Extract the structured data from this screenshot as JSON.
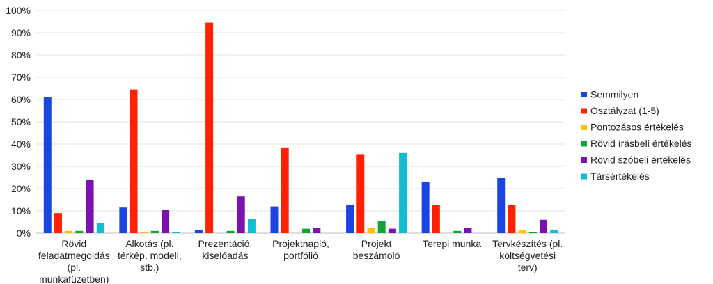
{
  "chart_data": {
    "type": "bar",
    "title": "",
    "xlabel": "",
    "ylabel": "",
    "ylim": [
      0,
      100
    ],
    "yticks": [
      "0%",
      "10%",
      "20%",
      "30%",
      "40%",
      "50%",
      "60%",
      "70%",
      "80%",
      "90%",
      "100%"
    ],
    "grid": true,
    "legend_position": "right",
    "categories": [
      [
        "Rövid",
        "feladatmegoldás",
        "(pl.",
        "munkafüzetben)"
      ],
      [
        "Alkotás (pl.",
        "térkép, modell,",
        "stb.)"
      ],
      [
        "Prezentáció,",
        "kiselőadás"
      ],
      [
        "Projektnapló,",
        "portfólió"
      ],
      [
        "Projekt",
        "beszámoló"
      ],
      [
        "Terepi munka"
      ],
      [
        "Tervkészítés (pl.",
        "költségvetési",
        "terv)"
      ]
    ],
    "series": [
      {
        "name": "Semmilyen",
        "color": "#1a45e0",
        "values": [
          61,
          11.5,
          1.5,
          12,
          12.5,
          23,
          25
        ]
      },
      {
        "name": "Osztályzat (1-5)",
        "color": "#ff2200",
        "values": [
          9,
          64.5,
          94.5,
          38.5,
          35.5,
          12.5,
          12.5
        ]
      },
      {
        "name": "Pontozásos értékelés",
        "color": "#ffc000",
        "values": [
          1,
          0.5,
          0,
          0,
          2.5,
          0,
          1.5
        ]
      },
      {
        "name": "Rövid írásbeli értékelés",
        "color": "#12a33c",
        "values": [
          1,
          1,
          1,
          2,
          5.5,
          1,
          0.5
        ]
      },
      {
        "name": "Rövid szóbeli értékelés",
        "color": "#7b12b0",
        "values": [
          24,
          10.5,
          16.5,
          2.5,
          2,
          2.5,
          6
        ]
      },
      {
        "name": "Társértékelés",
        "color": "#12bcd2",
        "values": [
          4.5,
          0.5,
          6.5,
          0,
          36,
          0,
          1.5
        ]
      }
    ]
  }
}
